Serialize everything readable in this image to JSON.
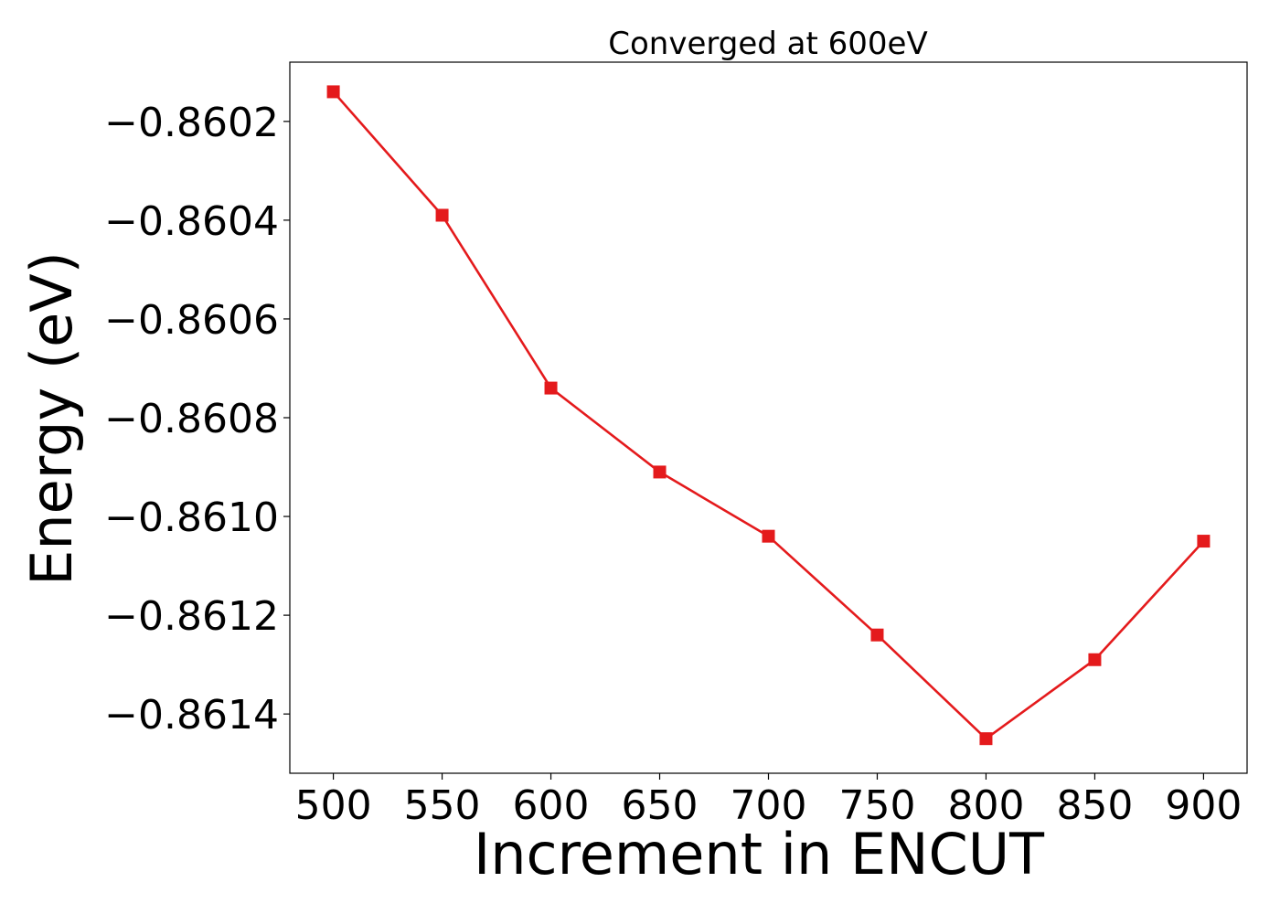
{
  "chart_data": {
    "type": "line",
    "title": "Converged at 600eV",
    "xlabel": "Increment in ENCUT",
    "ylabel": "Energy (eV)",
    "x": [
      500,
      550,
      600,
      650,
      700,
      750,
      800,
      850,
      900
    ],
    "series": [
      {
        "color": "#e41a1c",
        "marker": "square",
        "values": [
          -0.86014,
          -0.86039,
          -0.86074,
          -0.86091,
          -0.86104,
          -0.86124,
          -0.86145,
          -0.86129,
          -0.86105
        ]
      }
    ],
    "xticks": [
      "500",
      "550",
      "600",
      "650",
      "700",
      "750",
      "800",
      "850",
      "900"
    ],
    "yticks": [
      "−0.8602",
      "−0.8604",
      "−0.8606",
      "−0.8608",
      "−0.8610",
      "−0.8612",
      "−0.8614"
    ],
    "ytick_values": [
      -0.8602,
      -0.8604,
      -0.8606,
      -0.8608,
      -0.861,
      -0.8612,
      -0.8614
    ],
    "xlim": [
      480,
      920
    ],
    "ylim": [
      -0.86152,
      -0.86008
    ],
    "grid": false
  }
}
